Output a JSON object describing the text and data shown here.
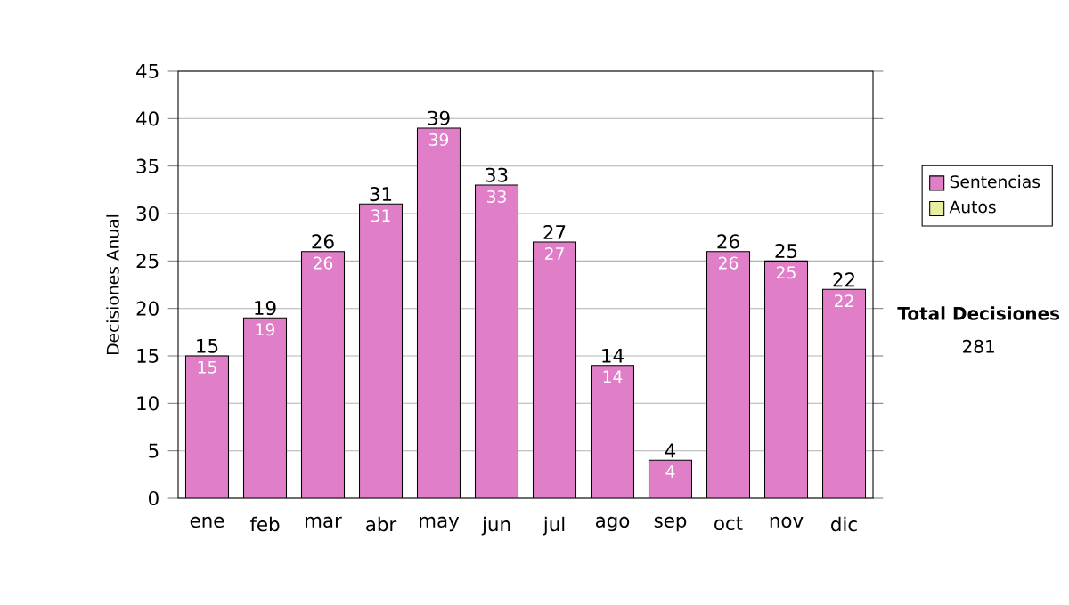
{
  "chart_data": {
    "type": "bar",
    "ylabel": "Decisiones Anual",
    "categories": [
      "ene",
      "feb",
      "mar",
      "abr",
      "may",
      "jun",
      "jul",
      "ago",
      "sep",
      "oct",
      "nov",
      "dic"
    ],
    "series": [
      {
        "name": "Sentencias",
        "color": "#e07ec8",
        "values": [
          15,
          19,
          26,
          31,
          39,
          33,
          27,
          14,
          4,
          26,
          25,
          22
        ],
        "value_labels": [
          "15",
          "19",
          "26",
          "31",
          "39",
          "33",
          "27",
          "14",
          "4",
          "26",
          "25",
          "22"
        ]
      },
      {
        "name": "Autos",
        "color": "#e8f0a0",
        "values": [
          0,
          0,
          0,
          0,
          0,
          0,
          0,
          0,
          0,
          0,
          0,
          0
        ]
      }
    ],
    "stacked": true,
    "totals": [
      "15",
      "19",
      "26",
      "31",
      "39",
      "33",
      "27",
      "14",
      "4",
      "26",
      "25",
      "22"
    ],
    "ylim": [
      0,
      45
    ],
    "yticks": [
      0,
      5,
      10,
      15,
      20,
      25,
      30,
      35,
      40,
      45
    ],
    "grid": "y",
    "legend": "right",
    "annotations": [
      "Total Decisiones",
      "281"
    ]
  }
}
